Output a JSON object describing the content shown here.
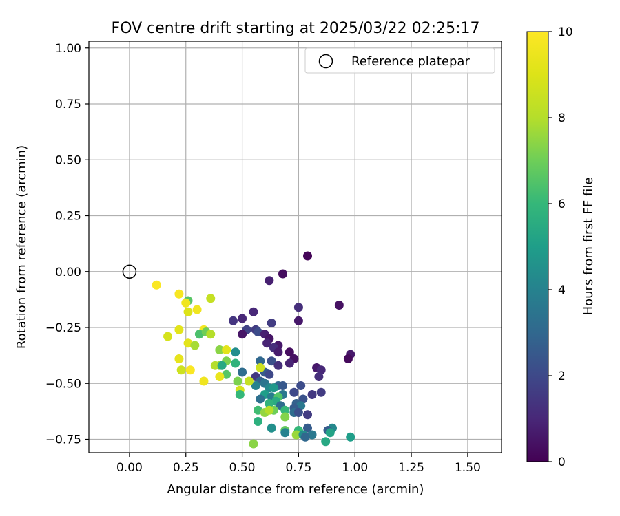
{
  "chart_data": {
    "type": "scatter",
    "title": "FOV centre drift starting at 2025/03/22 02:25:17",
    "xlabel": "Angular distance from reference (arcmin)",
    "ylabel": "Rotation from reference (arcmin)",
    "xlim": [
      -0.18,
      1.65
    ],
    "ylim": [
      -0.81,
      1.03
    ],
    "xticks": [
      0.0,
      0.25,
      0.5,
      0.75,
      1.0,
      1.25,
      1.5
    ],
    "xtick_labels": [
      "0.00",
      "0.25",
      "0.50",
      "0.75",
      "1.00",
      "1.25",
      "1.50"
    ],
    "yticks": [
      -0.75,
      -0.5,
      -0.25,
      0.0,
      0.25,
      0.5,
      0.75,
      1.0
    ],
    "ytick_labels": [
      "−0.75",
      "−0.50",
      "−0.25",
      "0.00",
      "0.25",
      "0.50",
      "0.75",
      "1.00"
    ],
    "grid": true,
    "legend": {
      "placement": "top-right",
      "entries": [
        "Reference platepar"
      ]
    },
    "reference_point": {
      "x": 0.0,
      "y": 0.0
    },
    "colorbar": {
      "label": "Hours from first FF file",
      "colormap": "viridis",
      "range": [
        0,
        10
      ],
      "ticks": [
        0,
        2,
        4,
        6,
        8,
        10
      ],
      "tick_labels": [
        "0",
        "2",
        "4",
        "6",
        "8",
        "10"
      ]
    },
    "points": [
      {
        "x": 0.79,
        "y": 0.07,
        "h": 0.1
      },
      {
        "x": 0.68,
        "y": -0.01,
        "h": 0.3
      },
      {
        "x": 0.62,
        "y": -0.04,
        "h": 0.8
      },
      {
        "x": 0.93,
        "y": -0.15,
        "h": 0.4
      },
      {
        "x": 0.75,
        "y": -0.16,
        "h": 1.2
      },
      {
        "x": 0.55,
        "y": -0.18,
        "h": 1.0
      },
      {
        "x": 0.75,
        "y": -0.22,
        "h": 0.6
      },
      {
        "x": 0.5,
        "y": -0.21,
        "h": 1.0
      },
      {
        "x": 0.46,
        "y": -0.22,
        "h": 1.4
      },
      {
        "x": 0.63,
        "y": -0.23,
        "h": 1.6
      },
      {
        "x": 0.52,
        "y": -0.26,
        "h": 1.8
      },
      {
        "x": 0.56,
        "y": -0.26,
        "h": 1.6
      },
      {
        "x": 0.57,
        "y": -0.27,
        "h": 2.1
      },
      {
        "x": 0.6,
        "y": -0.28,
        "h": 0.8
      },
      {
        "x": 0.5,
        "y": -0.28,
        "h": 0.5
      },
      {
        "x": 0.62,
        "y": -0.3,
        "h": 0.5
      },
      {
        "x": 0.66,
        "y": -0.33,
        "h": 0.6
      },
      {
        "x": 0.61,
        "y": -0.32,
        "h": 0.9
      },
      {
        "x": 0.64,
        "y": -0.34,
        "h": 1.2
      },
      {
        "x": 0.71,
        "y": -0.36,
        "h": 0.3
      },
      {
        "x": 0.66,
        "y": -0.36,
        "h": 0.7
      },
      {
        "x": 0.98,
        "y": -0.37,
        "h": 0.6
      },
      {
        "x": 0.97,
        "y": -0.39,
        "h": 0.2
      },
      {
        "x": 0.73,
        "y": -0.39,
        "h": 0.4
      },
      {
        "x": 0.58,
        "y": -0.4,
        "h": 3.0
      },
      {
        "x": 0.63,
        "y": -0.4,
        "h": 2.2
      },
      {
        "x": 0.66,
        "y": -0.42,
        "h": 1.2
      },
      {
        "x": 0.71,
        "y": -0.41,
        "h": 0.9
      },
      {
        "x": 0.83,
        "y": -0.43,
        "h": 0.6
      },
      {
        "x": 0.85,
        "y": -0.44,
        "h": 1.0
      },
      {
        "x": 0.6,
        "y": -0.45,
        "h": 2.6
      },
      {
        "x": 0.5,
        "y": -0.45,
        "h": 3.2
      },
      {
        "x": 0.62,
        "y": -0.46,
        "h": 2.0
      },
      {
        "x": 0.56,
        "y": -0.47,
        "h": 1.5
      },
      {
        "x": 0.84,
        "y": -0.47,
        "h": 1.2
      },
      {
        "x": 0.58,
        "y": -0.49,
        "h": 2.8
      },
      {
        "x": 0.6,
        "y": -0.5,
        "h": 3.5
      },
      {
        "x": 0.66,
        "y": -0.51,
        "h": 3.0
      },
      {
        "x": 0.68,
        "y": -0.51,
        "h": 2.5
      },
      {
        "x": 0.76,
        "y": -0.51,
        "h": 2.1
      },
      {
        "x": 0.56,
        "y": -0.51,
        "h": 4.0
      },
      {
        "x": 0.62,
        "y": -0.52,
        "h": 4.2
      },
      {
        "x": 0.64,
        "y": -0.52,
        "h": 4.8
      },
      {
        "x": 0.73,
        "y": -0.54,
        "h": 2.0
      },
      {
        "x": 0.85,
        "y": -0.54,
        "h": 1.6
      },
      {
        "x": 0.81,
        "y": -0.55,
        "h": 1.5
      },
      {
        "x": 0.68,
        "y": -0.55,
        "h": 3.6
      },
      {
        "x": 0.6,
        "y": -0.55,
        "h": 5.0
      },
      {
        "x": 0.63,
        "y": -0.56,
        "h": 3.8
      },
      {
        "x": 0.77,
        "y": -0.57,
        "h": 2.3
      },
      {
        "x": 0.66,
        "y": -0.56,
        "h": 6.5
      },
      {
        "x": 0.58,
        "y": -0.57,
        "h": 3.3
      },
      {
        "x": 0.65,
        "y": -0.58,
        "h": 5.5
      },
      {
        "x": 0.62,
        "y": -0.59,
        "h": 5.8
      },
      {
        "x": 0.74,
        "y": -0.59,
        "h": 2.8
      },
      {
        "x": 0.67,
        "y": -0.6,
        "h": 3.2
      },
      {
        "x": 0.76,
        "y": -0.6,
        "h": 3.6
      },
      {
        "x": 0.73,
        "y": -0.61,
        "h": 2.6
      },
      {
        "x": 0.57,
        "y": -0.62,
        "h": 6.2
      },
      {
        "x": 0.64,
        "y": -0.62,
        "h": 7.0
      },
      {
        "x": 0.73,
        "y": -0.63,
        "h": 3.2
      },
      {
        "x": 0.6,
        "y": -0.63,
        "h": 7.5
      },
      {
        "x": 0.62,
        "y": -0.62,
        "h": 8.0
      },
      {
        "x": 0.69,
        "y": -0.62,
        "h": 6.0
      },
      {
        "x": 0.75,
        "y": -0.63,
        "h": 2.2
      },
      {
        "x": 0.79,
        "y": -0.64,
        "h": 1.6
      },
      {
        "x": 0.69,
        "y": -0.65,
        "h": 7.3
      },
      {
        "x": 0.57,
        "y": -0.67,
        "h": 5.7
      },
      {
        "x": 0.63,
        "y": -0.7,
        "h": 4.5
      },
      {
        "x": 0.79,
        "y": -0.7,
        "h": 2.6
      },
      {
        "x": 0.9,
        "y": -0.7,
        "h": 4.2
      },
      {
        "x": 0.88,
        "y": -0.71,
        "h": 2.6
      },
      {
        "x": 0.69,
        "y": -0.71,
        "h": 6.8
      },
      {
        "x": 0.75,
        "y": -0.71,
        "h": 6.0
      },
      {
        "x": 0.89,
        "y": -0.72,
        "h": 5.2
      },
      {
        "x": 0.69,
        "y": -0.72,
        "h": 4.0
      },
      {
        "x": 0.74,
        "y": -0.73,
        "h": 7.6
      },
      {
        "x": 0.77,
        "y": -0.73,
        "h": 4.4
      },
      {
        "x": 0.81,
        "y": -0.73,
        "h": 3.6
      },
      {
        "x": 0.78,
        "y": -0.74,
        "h": 3.0
      },
      {
        "x": 0.98,
        "y": -0.74,
        "h": 5.0
      },
      {
        "x": 0.87,
        "y": -0.76,
        "h": 5.4
      },
      {
        "x": 0.55,
        "y": -0.77,
        "h": 7.4
      },
      {
        "x": 0.47,
        "y": -0.36,
        "h": 4.4
      },
      {
        "x": 0.47,
        "y": -0.41,
        "h": 5.8
      },
      {
        "x": 0.43,
        "y": -0.4,
        "h": 7.2
      },
      {
        "x": 0.4,
        "y": -0.42,
        "h": 7.6
      },
      {
        "x": 0.38,
        "y": -0.42,
        "h": 8.0
      },
      {
        "x": 0.41,
        "y": -0.42,
        "h": 5.4
      },
      {
        "x": 0.43,
        "y": -0.46,
        "h": 6.6
      },
      {
        "x": 0.4,
        "y": -0.47,
        "h": 9.4
      },
      {
        "x": 0.48,
        "y": -0.49,
        "h": 7.2
      },
      {
        "x": 0.53,
        "y": -0.49,
        "h": 8.4
      },
      {
        "x": 0.49,
        "y": -0.53,
        "h": 8.8
      },
      {
        "x": 0.49,
        "y": -0.55,
        "h": 6.0
      },
      {
        "x": 0.4,
        "y": -0.35,
        "h": 7.4
      },
      {
        "x": 0.43,
        "y": -0.35,
        "h": 9.2
      },
      {
        "x": 0.58,
        "y": -0.43,
        "h": 8.6
      },
      {
        "x": 0.36,
        "y": -0.12,
        "h": 8.4
      },
      {
        "x": 0.26,
        "y": -0.13,
        "h": 6.6
      },
      {
        "x": 0.25,
        "y": -0.14,
        "h": 9.6
      },
      {
        "x": 0.22,
        "y": -0.1,
        "h": 9.8
      },
      {
        "x": 0.12,
        "y": -0.06,
        "h": 9.9
      },
      {
        "x": 0.26,
        "y": -0.18,
        "h": 9.0
      },
      {
        "x": 0.3,
        "y": -0.17,
        "h": 9.6
      },
      {
        "x": 0.22,
        "y": -0.26,
        "h": 9.2
      },
      {
        "x": 0.33,
        "y": -0.26,
        "h": 9.7
      },
      {
        "x": 0.17,
        "y": -0.29,
        "h": 8.8
      },
      {
        "x": 0.31,
        "y": -0.28,
        "h": 6.4
      },
      {
        "x": 0.34,
        "y": -0.27,
        "h": 7.0
      },
      {
        "x": 0.36,
        "y": -0.28,
        "h": 8.0
      },
      {
        "x": 0.26,
        "y": -0.32,
        "h": 9.2
      },
      {
        "x": 0.29,
        "y": -0.33,
        "h": 7.8
      },
      {
        "x": 0.22,
        "y": -0.39,
        "h": 9.3
      },
      {
        "x": 0.23,
        "y": -0.44,
        "h": 8.6
      },
      {
        "x": 0.27,
        "y": -0.44,
        "h": 9.9
      },
      {
        "x": 0.33,
        "y": -0.49,
        "h": 9.6
      }
    ]
  }
}
